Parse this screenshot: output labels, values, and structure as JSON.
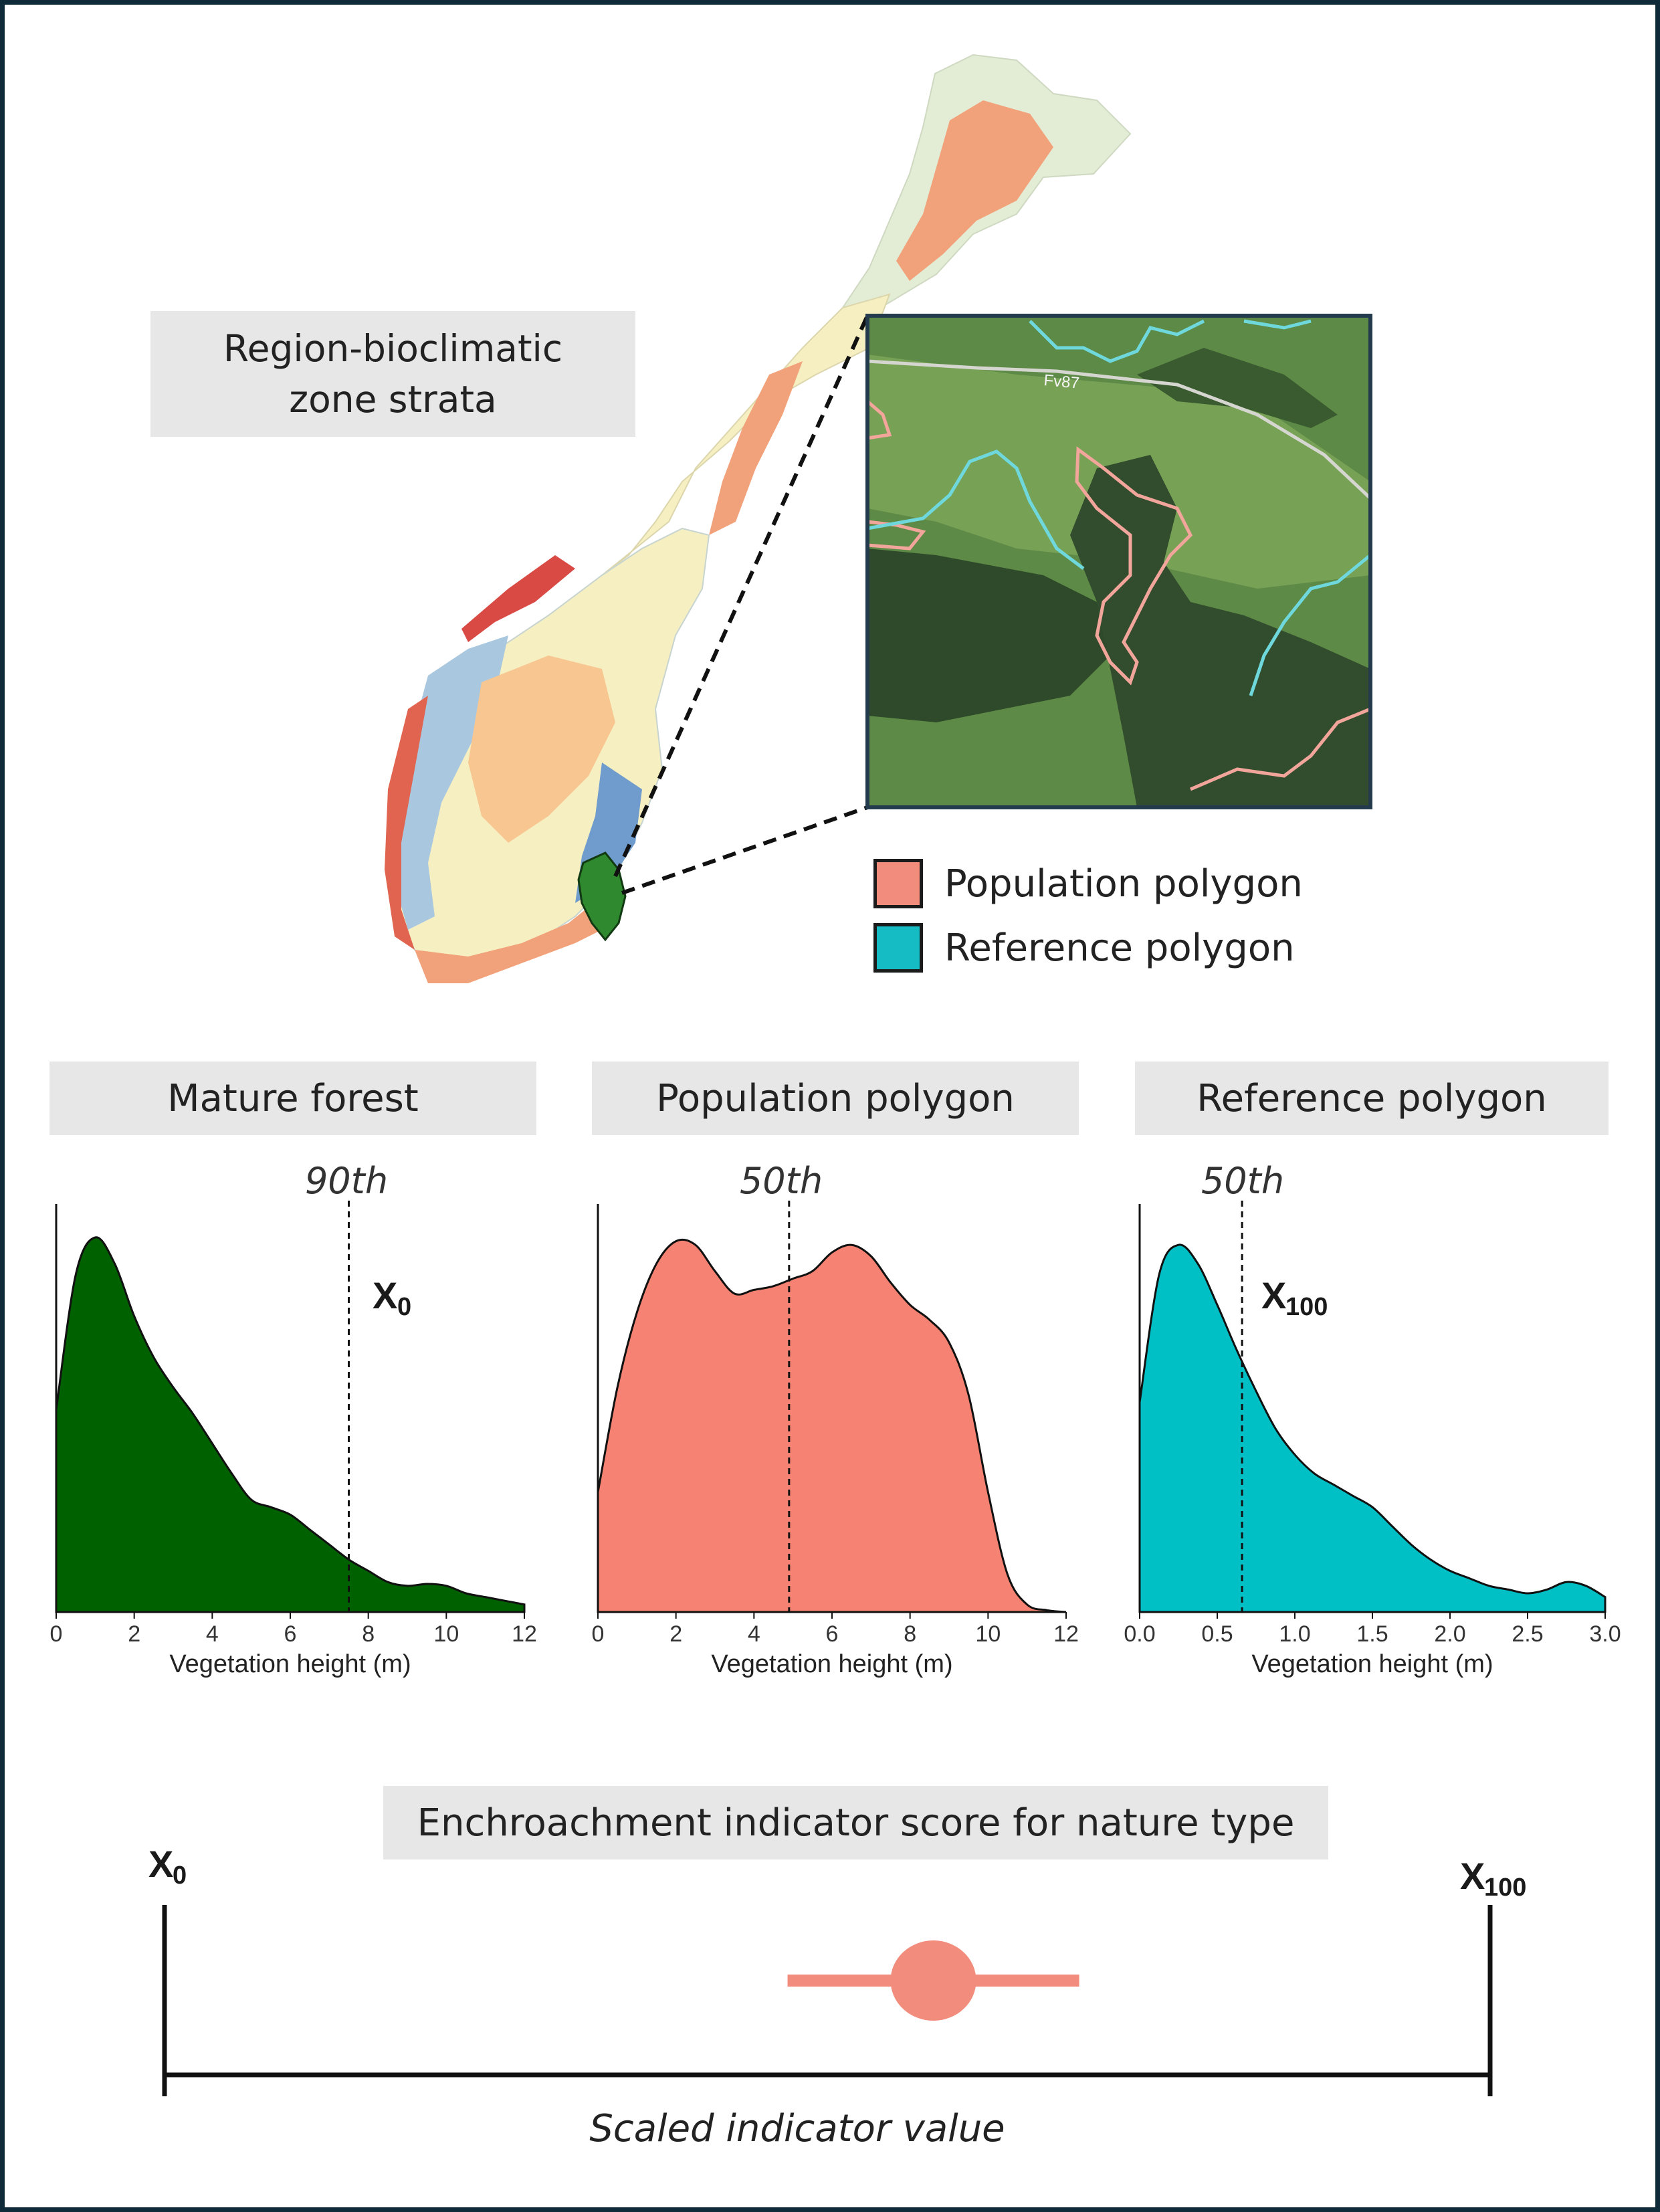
{
  "map": {
    "region_label_line1": "Region-bioclimatic",
    "region_label_line2": "zone strata",
    "inset_road_label": "Fv87",
    "colors": {
      "red": "#d94a44",
      "salmon": "#f2a27a",
      "pale_yellow": "#f6efc2",
      "pale_green": "#e3edd6",
      "light_blue": "#a9c8df",
      "blue": "#6f9ccc",
      "orange_light": "#f7c691",
      "selected_region": "#2f8a2f"
    }
  },
  "legend": {
    "population_label": "Population polygon",
    "population_color": "#f28c7c",
    "reference_label": "Reference polygon",
    "reference_color": "#15bcc4"
  },
  "panels": {
    "mature": {
      "title": "Mature forest",
      "percentile_label": "90th",
      "marker_label": "X",
      "marker_sub": "0"
    },
    "population": {
      "title": "Population polygon",
      "percentile_label": "50th"
    },
    "reference": {
      "title": "Reference polygon",
      "percentile_label": "50th",
      "marker_label": "X",
      "marker_sub": "100"
    }
  },
  "chart_data": [
    {
      "type": "area",
      "title": "Mature forest",
      "xlabel": "Vegetation height (m)",
      "xlim": [
        0,
        12
      ],
      "x_ticks": [
        "0",
        "2",
        "4",
        "6",
        "8",
        "10",
        "12"
      ],
      "color": "#006100",
      "percentile": "90th",
      "percentile_x": 7.5,
      "x": [
        0,
        0.5,
        1,
        1.5,
        2,
        2.5,
        3,
        3.5,
        4,
        4.5,
        5,
        5.5,
        6,
        6.5,
        7,
        7.5,
        8,
        8.5,
        9,
        9.5,
        10,
        10.5,
        11,
        11.5,
        12
      ],
      "y": [
        0.54,
        0.9,
        1.0,
        0.93,
        0.79,
        0.68,
        0.6,
        0.53,
        0.45,
        0.37,
        0.3,
        0.28,
        0.26,
        0.22,
        0.18,
        0.14,
        0.11,
        0.08,
        0.07,
        0.075,
        0.07,
        0.05,
        0.04,
        0.03,
        0.02
      ]
    },
    {
      "type": "area",
      "title": "Population polygon",
      "xlabel": "Vegetation height (m)",
      "xlim": [
        0,
        12
      ],
      "x_ticks": [
        "0",
        "2",
        "4",
        "6",
        "8",
        "10",
        "12"
      ],
      "color": "#f58272",
      "percentile": "50th",
      "percentile_x": 4.9,
      "x": [
        0,
        0.5,
        1,
        1.5,
        2,
        2.5,
        3,
        3.5,
        4,
        4.5,
        5,
        5.5,
        6,
        6.5,
        7,
        7.5,
        8,
        8.5,
        9,
        9.5,
        10,
        10.5,
        11,
        11.5,
        12
      ],
      "y": [
        0.32,
        0.6,
        0.8,
        0.93,
        0.99,
        0.98,
        0.91,
        0.85,
        0.86,
        0.87,
        0.89,
        0.91,
        0.96,
        0.98,
        0.95,
        0.88,
        0.82,
        0.78,
        0.72,
        0.58,
        0.32,
        0.1,
        0.02,
        0.005,
        0
      ]
    },
    {
      "type": "area",
      "title": "Reference polygon",
      "xlabel": "Vegetation height (m)",
      "xlim": [
        0,
        3.0
      ],
      "x_ticks": [
        "0.0",
        "0.5",
        "1.0",
        "1.5",
        "2.0",
        "2.5",
        "3.0"
      ],
      "color": "#00c0c6",
      "percentile": "50th",
      "percentile_x": 0.66,
      "x": [
        0,
        0.125,
        0.25,
        0.375,
        0.5,
        0.625,
        0.75,
        0.875,
        1.0,
        1.125,
        1.25,
        1.375,
        1.5,
        1.625,
        1.75,
        1.875,
        2.0,
        2.125,
        2.25,
        2.375,
        2.5,
        2.625,
        2.75,
        2.875,
        3.0
      ],
      "y": [
        0.56,
        0.9,
        0.98,
        0.93,
        0.82,
        0.7,
        0.59,
        0.49,
        0.42,
        0.37,
        0.34,
        0.31,
        0.28,
        0.23,
        0.18,
        0.14,
        0.11,
        0.09,
        0.07,
        0.06,
        0.05,
        0.06,
        0.08,
        0.07,
        0.04
      ]
    }
  ],
  "score": {
    "title": "Enchroachment indicator score for nature type",
    "left_label": "X",
    "left_sub": "0",
    "right_label": "X",
    "right_sub": "100",
    "axis_label": "Scaled indicator value",
    "point_value": 0.58,
    "interval": [
      0.47,
      0.69
    ],
    "color": "#f28c7c"
  }
}
